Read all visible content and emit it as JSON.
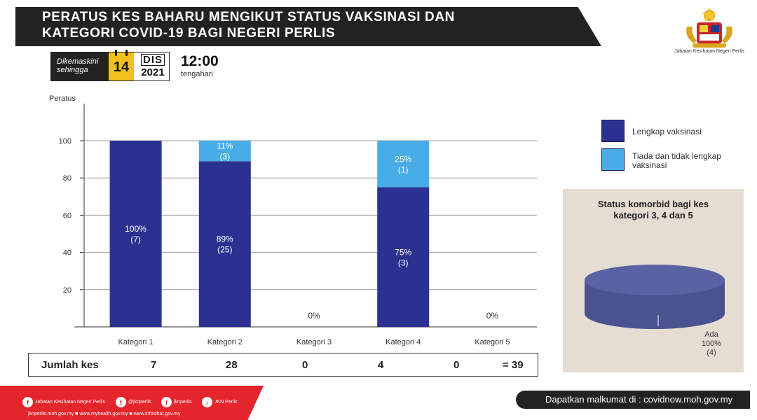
{
  "title": {
    "line1": "PERATUS KES BAHARU MENGIKUT STATUS VAKSINASI  DAN",
    "line2": "KATEGORI COVID-19 BAGI NEGERI PERLIS"
  },
  "logo": {
    "name": "jata-negara-icon",
    "caption": "Jabatan Kesihatan Negeri Perlis"
  },
  "update": {
    "label_line1": "Dikemaskini",
    "label_line2": "sehingga",
    "day": "14",
    "month": "DIS",
    "year": "2021",
    "time": "12:00",
    "time_label": "tengahari"
  },
  "colors": {
    "full": "#2b3191",
    "partial": "#48ade6",
    "red": "#e4252c",
    "panel": "#e6ddd2",
    "pie": "#4b5290",
    "pie_top": "#5a62a3"
  },
  "chart_data": [
    {
      "type": "bar",
      "stacked": true,
      "ylabel": "Peratus",
      "ylim": [
        0,
        100
      ],
      "yticks": [
        "20",
        "40",
        "60",
        "80",
        "100"
      ],
      "grid": true,
      "legend": "right",
      "categories": [
        "Kategori 1",
        "Kategori 2",
        "Kategori 3",
        "Kategori 4",
        "Kategori 5"
      ],
      "series": [
        {
          "name": "Lengkap vaksinasi",
          "values": [
            100,
            89,
            0,
            75,
            0
          ],
          "labels": [
            "100%",
            "89%",
            "",
            "75%",
            ""
          ],
          "counts": [
            "(7)",
            "(25)",
            "",
            "(3)",
            ""
          ]
        },
        {
          "name": "Tiada dan tidak lengkap vaksinasi",
          "values": [
            0,
            11,
            0,
            25,
            0
          ],
          "labels": [
            "",
            "11%",
            "",
            "25%",
            ""
          ],
          "counts": [
            "",
            "(3)",
            "",
            "(1)",
            ""
          ]
        }
      ],
      "zero_labels": [
        "",
        "",
        "0%",
        "",
        "0%"
      ]
    },
    {
      "type": "pie",
      "title_line1": "Status komorbid bagi kes",
      "title_line2": "kategori 3, 4 dan 5",
      "slices": [
        {
          "name": "Ada",
          "value": 100,
          "label": "100%",
          "count": "(4)"
        }
      ]
    }
  ],
  "summary": {
    "label": "Jumlah kes",
    "values": [
      "7",
      "28",
      "0",
      "4",
      "0"
    ],
    "total": "= 39"
  },
  "footer": {
    "social": [
      {
        "icon": "facebook-icon",
        "glyph": "f",
        "text": "Jabatan Kesihatan Negeri Perlis"
      },
      {
        "icon": "twitter-icon",
        "glyph": "t",
        "text": "@jknperlis"
      },
      {
        "icon": "instagram-icon",
        "glyph": "i",
        "text": "jknperlis"
      },
      {
        "icon": "tiktok-icon",
        "glyph": "♪",
        "text": "JKN Perlis"
      }
    ],
    "links": "jknperlis.moh.gov.my ■ www.myhealth.gov.my ■ www.infosihat.gov.my",
    "info": "Dapatkan malkumat di : covidnow.moh.gov.my"
  }
}
